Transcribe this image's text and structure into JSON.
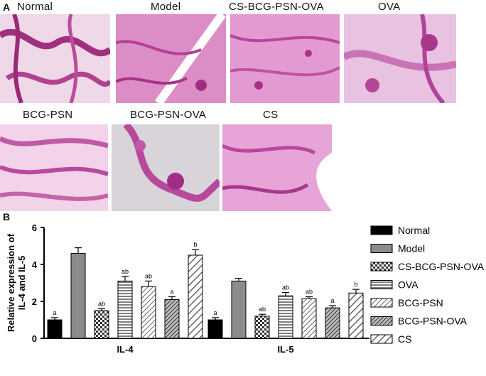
{
  "panel_a": {
    "letter": "A",
    "images": [
      {
        "label": "Normal",
        "bg": "#e9c3dc"
      },
      {
        "label": "Model",
        "bg": "#df8fcb"
      },
      {
        "label": "CS-BCG-PSN-OVA",
        "bg": "#e39ad0"
      },
      {
        "label": "OVA",
        "bg": "#e8b4dd"
      },
      {
        "label": "BCG-PSN",
        "bg": "#efc4e4"
      },
      {
        "label": "BCG-PSN-OVA",
        "bg": "#d8d2d8"
      },
      {
        "label": "CS",
        "bg": "#e7a6d6"
      }
    ]
  },
  "panel_b": {
    "letter": "B"
  },
  "chart_data": {
    "type": "bar",
    "title": "",
    "xlabel": "",
    "ylabel": "Relative expression of IL-4 and IL-5",
    "ylim": [
      0,
      6
    ],
    "yticks": [
      0,
      2,
      4,
      6
    ],
    "grid": false,
    "legend_position": "right",
    "categories": [
      "IL-4",
      "IL-5"
    ],
    "series": [
      {
        "name": "Normal",
        "values": [
          1.0,
          1.0
        ],
        "errors": [
          0.12,
          0.12
        ],
        "letters": [
          "a",
          "a"
        ],
        "pattern": "solid-black"
      },
      {
        "name": "Model",
        "values": [
          4.6,
          3.1
        ],
        "errors": [
          0.3,
          0.15
        ],
        "letters": [
          "",
          ""
        ],
        "pattern": "solid-gray"
      },
      {
        "name": "CS-BCG-PSN-OVA",
        "values": [
          1.5,
          1.2
        ],
        "errors": [
          0.1,
          0.1
        ],
        "letters": [
          "ab",
          "ab"
        ],
        "pattern": "checker"
      },
      {
        "name": "OVA",
        "values": [
          3.1,
          2.3
        ],
        "errors": [
          0.25,
          0.18
        ],
        "letters": [
          "ab",
          "ab"
        ],
        "pattern": "horizontal"
      },
      {
        "name": "BCG-PSN",
        "values": [
          2.8,
          2.15
        ],
        "errors": [
          0.3,
          0.1
        ],
        "letters": [
          "ab",
          "ab"
        ],
        "pattern": "diagonal-light"
      },
      {
        "name": "BCG-PSN-OVA",
        "values": [
          2.1,
          1.65
        ],
        "errors": [
          0.15,
          0.12
        ],
        "letters": [
          "a",
          "a"
        ],
        "pattern": "diagonal-dense"
      },
      {
        "name": "CS",
        "values": [
          4.5,
          2.45
        ],
        "errors": [
          0.3,
          0.2
        ],
        "letters": [
          "b",
          "b"
        ],
        "pattern": "diagonal-wide"
      }
    ]
  }
}
